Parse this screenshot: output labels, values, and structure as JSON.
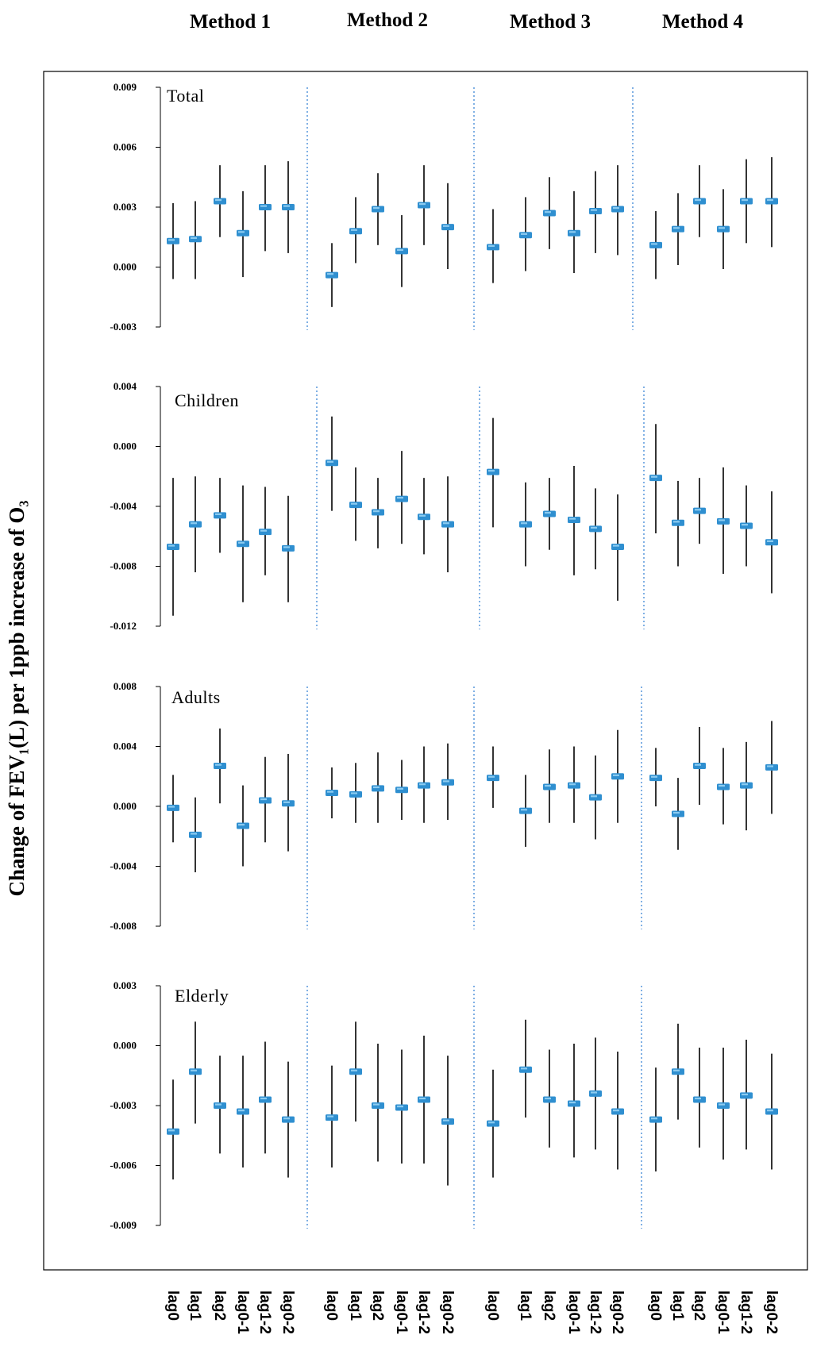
{
  "chart_data": {
    "type": "errorbar",
    "ylabel": "Change of FEV₁(L) per 1ppb increase of O₃",
    "methods": [
      "Method 1",
      "Method 2",
      "Method 3",
      "Method 4"
    ],
    "lags": [
      "lag0",
      "lag1",
      "lag2",
      "lag0-1",
      "lag1-2",
      "lag0-2"
    ],
    "panels": [
      {
        "name": "Total",
        "ylim": [
          -0.003,
          0.009
        ],
        "yticks": [
          "0.009",
          "0.006",
          "0.003",
          "0.000",
          "-0.003"
        ],
        "series": [
          {
            "method": "Method 1",
            "values": [
              0.0013,
              0.0014,
              0.0033,
              0.0017,
              0.003,
              0.003
            ],
            "lower": [
              -0.0006,
              -0.0006,
              0.0015,
              -0.0005,
              0.0008,
              0.0007
            ],
            "upper": [
              0.0032,
              0.0033,
              0.0051,
              0.0038,
              0.0051,
              0.0053
            ]
          },
          {
            "method": "Method 2",
            "values": [
              -0.0004,
              0.0018,
              0.0029,
              0.0008,
              0.0031,
              0.002
            ],
            "lower": [
              -0.002,
              0.0002,
              0.0011,
              -0.001,
              0.0011,
              -0.0001
            ],
            "upper": [
              0.0012,
              0.0035,
              0.0047,
              0.0026,
              0.0051,
              0.0042
            ]
          },
          {
            "method": "Method 3",
            "values": [
              0.001,
              0.0016,
              0.0027,
              0.0017,
              0.0028,
              0.0029
            ],
            "lower": [
              -0.0008,
              -0.0002,
              0.0009,
              -0.0003,
              0.0007,
              0.0006
            ],
            "upper": [
              0.0029,
              0.0035,
              0.0045,
              0.0038,
              0.0048,
              0.0051
            ]
          },
          {
            "method": "Method 4",
            "values": [
              0.0011,
              0.0019,
              0.0033,
              0.0019,
              0.0033,
              0.0033
            ],
            "lower": [
              -0.0006,
              0.0001,
              0.0015,
              -0.0001,
              0.0012,
              0.001
            ],
            "upper": [
              0.0028,
              0.0037,
              0.0051,
              0.0039,
              0.0054,
              0.0055
            ]
          }
        ]
      },
      {
        "name": "Children",
        "ylim": [
          -0.012,
          0.004
        ],
        "yticks": [
          "0.004",
          "0.000",
          "-0.004",
          "-0.008",
          "-0.012"
        ],
        "series": [
          {
            "method": "Method 1",
            "values": [
              -0.0067,
              -0.0052,
              -0.0046,
              -0.0065,
              -0.0057,
              -0.0068
            ],
            "lower": [
              -0.0113,
              -0.0084,
              -0.0071,
              -0.0104,
              -0.0086,
              -0.0104
            ],
            "upper": [
              -0.0021,
              -0.002,
              -0.0021,
              -0.0026,
              -0.0027,
              -0.0033
            ]
          },
          {
            "method": "Method 2",
            "values": [
              -0.0011,
              -0.0039,
              -0.0044,
              -0.0035,
              -0.0047,
              -0.0052
            ],
            "lower": [
              -0.0043,
              -0.0063,
              -0.0068,
              -0.0065,
              -0.0072,
              -0.0084
            ],
            "upper": [
              0.002,
              -0.0014,
              -0.0021,
              -0.0003,
              -0.0021,
              -0.002
            ]
          },
          {
            "method": "Method 3",
            "values": [
              -0.0017,
              -0.0052,
              -0.0045,
              -0.0049,
              -0.0055,
              -0.0067
            ],
            "lower": [
              -0.0054,
              -0.008,
              -0.0069,
              -0.0086,
              -0.0082,
              -0.0103
            ],
            "upper": [
              0.0019,
              -0.0024,
              -0.0021,
              -0.0013,
              -0.0028,
              -0.0032
            ]
          },
          {
            "method": "Method 4",
            "values": [
              -0.0021,
              -0.0051,
              -0.0043,
              -0.005,
              -0.0053,
              -0.0064
            ],
            "lower": [
              -0.0058,
              -0.008,
              -0.0065,
              -0.0085,
              -0.008,
              -0.0098
            ],
            "upper": [
              0.0015,
              -0.0023,
              -0.0021,
              -0.0014,
              -0.0026,
              -0.003
            ]
          }
        ]
      },
      {
        "name": "Adults",
        "ylim": [
          -0.008,
          0.008
        ],
        "yticks": [
          "0.008",
          "0.004",
          "0.000",
          "-0.004",
          "-0.008"
        ],
        "series": [
          {
            "method": "Method 1",
            "values": [
              -0.0001,
              -0.0019,
              0.0027,
              -0.0013,
              0.0004,
              0.0002
            ],
            "lower": [
              -0.0024,
              -0.0044,
              0.0002,
              -0.004,
              -0.0024,
              -0.003
            ],
            "upper": [
              0.0021,
              0.0006,
              0.0052,
              0.0014,
              0.0033,
              0.0035
            ]
          },
          {
            "method": "Method 2",
            "values": [
              0.0009,
              0.0008,
              0.0012,
              0.0011,
              0.0014,
              0.0016
            ],
            "lower": [
              -0.0008,
              -0.0011,
              -0.0011,
              -0.0009,
              -0.0011,
              -0.0009
            ],
            "upper": [
              0.0026,
              0.0029,
              0.0036,
              0.0031,
              0.004,
              0.0042
            ]
          },
          {
            "method": "Method 3",
            "values": [
              0.0019,
              -0.0003,
              0.0013,
              0.0014,
              0.0006,
              0.002
            ],
            "lower": [
              -0.0001,
              -0.0027,
              -0.0011,
              -0.0011,
              -0.0022,
              -0.0011
            ],
            "upper": [
              0.004,
              0.0021,
              0.0038,
              0.004,
              0.0034,
              0.0051
            ]
          },
          {
            "method": "Method 4",
            "values": [
              0.0019,
              -0.0005,
              0.0027,
              0.0013,
              0.0014,
              0.0026
            ],
            "lower": [
              0.0,
              -0.0029,
              0.0001,
              -0.0012,
              -0.0016,
              -0.0005
            ],
            "upper": [
              0.0039,
              0.0019,
              0.0053,
              0.0039,
              0.0043,
              0.0057
            ]
          }
        ]
      },
      {
        "name": "Elderly",
        "ylim": [
          -0.009,
          0.003
        ],
        "yticks": [
          "0.003",
          "0.000",
          "-0.003",
          "-0.006",
          "-0.009"
        ],
        "series": [
          {
            "method": "Method 1",
            "values": [
              -0.0043,
              -0.0013,
              -0.003,
              -0.0033,
              -0.0027,
              -0.0037
            ],
            "lower": [
              -0.0067,
              -0.0039,
              -0.0054,
              -0.0061,
              -0.0054,
              -0.0066
            ],
            "upper": [
              -0.0017,
              0.0012,
              -0.0005,
              -0.0005,
              0.0002,
              -0.0008
            ]
          },
          {
            "method": "Method 2",
            "values": [
              -0.0036,
              -0.0013,
              -0.003,
              -0.0031,
              -0.0027,
              -0.0038
            ],
            "lower": [
              -0.0061,
              -0.0038,
              -0.0058,
              -0.0059,
              -0.0059,
              -0.007
            ],
            "upper": [
              -0.001,
              0.0012,
              0.0001,
              -0.0002,
              0.0005,
              -0.0005
            ]
          },
          {
            "method": "Method 3",
            "values": [
              -0.0039,
              -0.0012,
              -0.0027,
              -0.0029,
              -0.0024,
              -0.0033
            ],
            "lower": [
              -0.0066,
              -0.0036,
              -0.0051,
              -0.0056,
              -0.0052,
              -0.0062
            ],
            "upper": [
              -0.0012,
              0.0013,
              -0.0002,
              0.0001,
              0.0004,
              -0.0003
            ]
          },
          {
            "method": "Method 4",
            "values": [
              -0.0037,
              -0.0013,
              -0.0027,
              -0.003,
              -0.0025,
              -0.0033
            ],
            "lower": [
              -0.0063,
              -0.0037,
              -0.0051,
              -0.0057,
              -0.0052,
              -0.0062
            ],
            "upper": [
              -0.0011,
              0.0011,
              -0.0001,
              -0.0001,
              0.0003,
              -0.0004
            ]
          }
        ]
      }
    ],
    "colors": {
      "marker": "#2f8fd0",
      "marker_highlight": "#8ccbf0",
      "whisker": "#000000",
      "divider": "#4a8fd8",
      "frame": "#000000"
    }
  }
}
